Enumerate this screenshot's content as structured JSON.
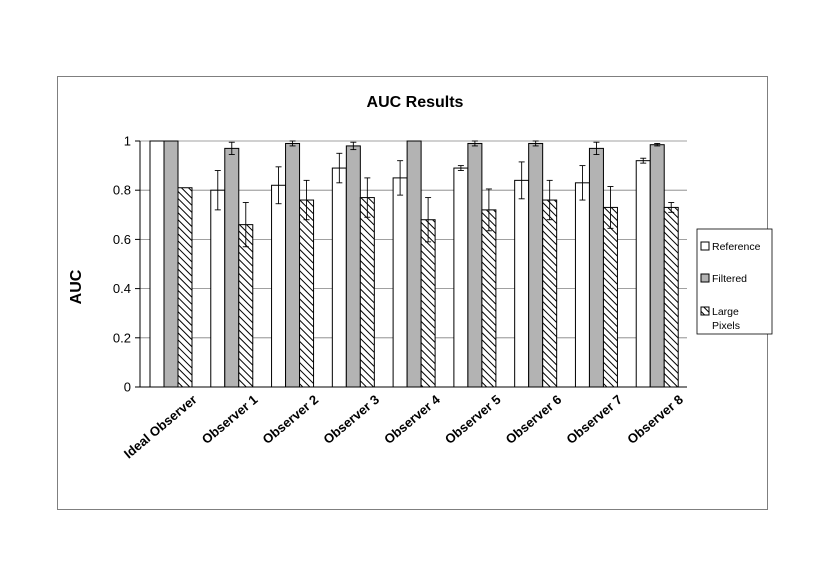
{
  "chart_data": {
    "type": "bar",
    "title": "AUC Results",
    "xlabel": "",
    "ylabel": "AUC",
    "ylim": [
      0,
      1
    ],
    "yticks": [
      "0",
      "0.2",
      "0.4",
      "0.6",
      "0.8",
      "1"
    ],
    "grid": "horizontal",
    "legend_position": "right",
    "categories": [
      "Ideal Observer",
      "Observer 1",
      "Observer 2",
      "Observer 3",
      "Observer 4",
      "Observer 5",
      "Observer 6",
      "Observer 7",
      "Observer 8"
    ],
    "series": [
      {
        "name": "Reference",
        "fill": "#ffffff",
        "values": [
          1.0,
          0.8,
          0.82,
          0.89,
          0.85,
          0.89,
          0.84,
          0.83,
          0.92
        ],
        "errors": [
          0,
          0.08,
          0.075,
          0.06,
          0.07,
          0.01,
          0.075,
          0.07,
          0.01
        ]
      },
      {
        "name": "Filtered",
        "fill": "#b3b3b3",
        "values": [
          1.0,
          0.97,
          0.99,
          0.98,
          1.0,
          0.99,
          0.99,
          0.97,
          0.985
        ],
        "errors": [
          0,
          0.025,
          0.01,
          0.015,
          0,
          0.01,
          0.01,
          0.025,
          0.005
        ]
      },
      {
        "name": "Large Pixels",
        "legend_lines": [
          "Large",
          "Pixels"
        ],
        "fill": "hatch",
        "values": [
          0.81,
          0.66,
          0.76,
          0.77,
          0.68,
          0.72,
          0.76,
          0.73,
          0.73
        ],
        "errors": [
          0,
          0.09,
          0.08,
          0.08,
          0.09,
          0.085,
          0.08,
          0.085,
          0.02
        ]
      }
    ]
  }
}
